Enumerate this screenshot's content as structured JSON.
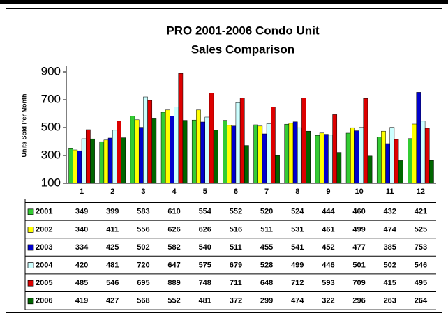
{
  "chart_data": {
    "type": "bar",
    "title": [
      "PRO 2001-2006 Condo Unit",
      "Sales Comparison"
    ],
    "y_label": "Units Sold Per Month",
    "categories": [
      "1",
      "2",
      "3",
      "4",
      "5",
      "6",
      "7",
      "8",
      "9",
      "10",
      "11",
      "12"
    ],
    "ylim": [
      100,
      900
    ],
    "yticks": [
      100,
      300,
      500,
      700,
      900
    ],
    "grid": false,
    "series": [
      {
        "name": "2001",
        "color": "#33cc33",
        "values": [
          349,
          399,
          583,
          610,
          554,
          552,
          520,
          524,
          444,
          460,
          432,
          421
        ]
      },
      {
        "name": "2002",
        "color": "#ffff00",
        "values": [
          340,
          411,
          556,
          626,
          626,
          516,
          511,
          531,
          461,
          499,
          474,
          525
        ]
      },
      {
        "name": "2003",
        "color": "#0000cc",
        "values": [
          334,
          425,
          502,
          582,
          540,
          511,
          455,
          541,
          452,
          477,
          385,
          753
        ]
      },
      {
        "name": "2004",
        "color": "#ccffff",
        "values": [
          420,
          481,
          720,
          647,
          575,
          679,
          528,
          499,
          446,
          501,
          502,
          546
        ]
      },
      {
        "name": "2005",
        "color": "#dd0000",
        "values": [
          485,
          546,
          695,
          889,
          748,
          711,
          648,
          712,
          593,
          709,
          415,
          495
        ]
      },
      {
        "name": "2006",
        "color": "#006600",
        "values": [
          419,
          427,
          568,
          552,
          481,
          372,
          299,
          474,
          322,
          296,
          263,
          264
        ]
      }
    ]
  }
}
